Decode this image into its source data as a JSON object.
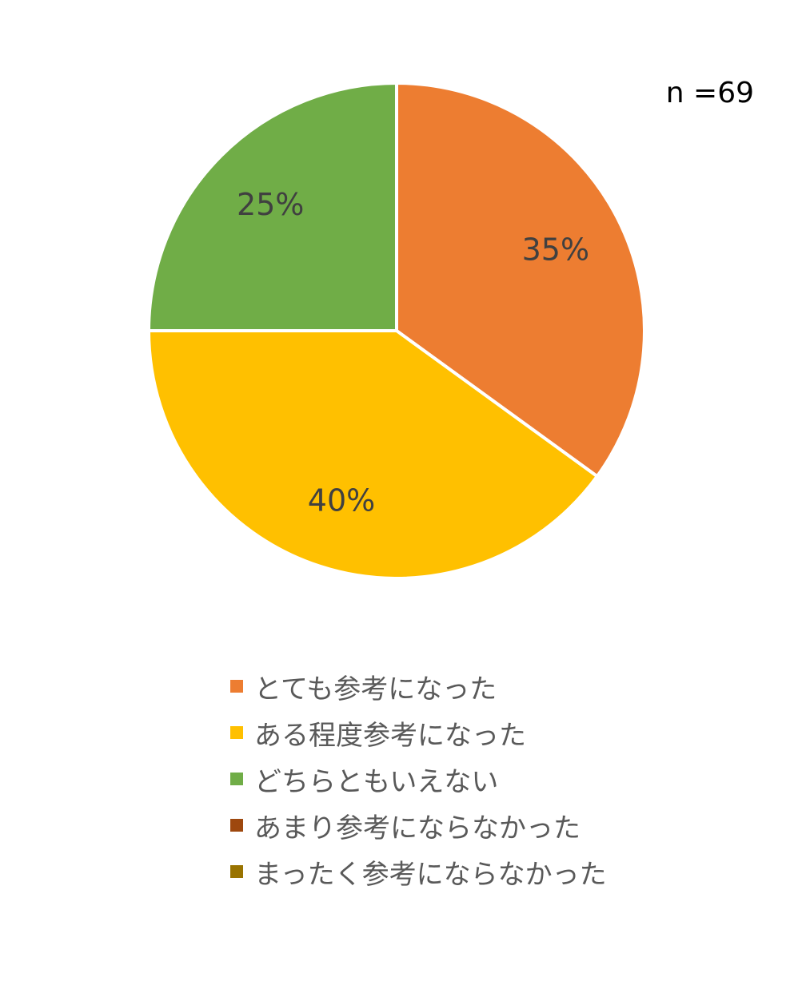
{
  "chart_data": {
    "type": "pie",
    "annotation": "n =69",
    "categories": [
      "とても参考になった",
      "ある程度参考になった",
      "どちらともいえない",
      "あまり参考にならなかった",
      "まったく参考にならなかった"
    ],
    "values": [
      35,
      40,
      25,
      0,
      0
    ],
    "data_labels": [
      "35%",
      "40%",
      "25%",
      "",
      ""
    ],
    "colors": [
      "#ED7D31",
      "#FFC000",
      "#70AD47",
      "#9E480E",
      "#997300"
    ],
    "legend_position": "bottom",
    "start_angle": "top, clockwise"
  }
}
